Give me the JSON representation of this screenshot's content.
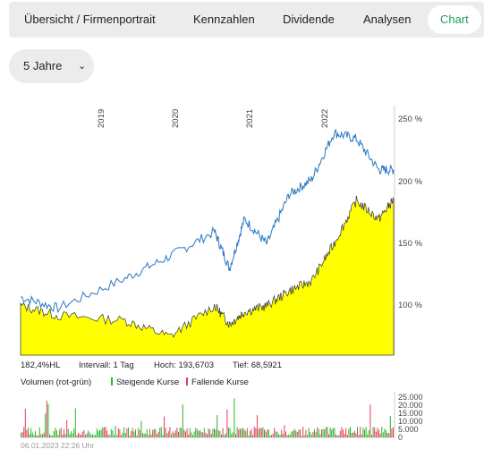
{
  "tabs": [
    {
      "label": "Übersicht / Firmenportrait",
      "active": false
    },
    {
      "label": "Kennzahlen",
      "active": false
    },
    {
      "label": "Dividende",
      "active": false
    },
    {
      "label": "Analysen",
      "active": false
    },
    {
      "label": "Chart",
      "active": true
    }
  ],
  "period_selector": {
    "value": "5 Jahre",
    "icon": "chevron-down-icon"
  },
  "colors": {
    "line": "#2a78c0",
    "area": "#ffff00",
    "accent": "#1fa060",
    "rising": "#2db32d",
    "falling": "#e0405a"
  },
  "chart_data": [
    {
      "type": "line",
      "subtype": "price-line-with-area",
      "x_year_labels": [
        "2019",
        "2020",
        "2021",
        "2022"
      ],
      "y_tick_labels": [
        "250 %",
        "200 %",
        "150 %",
        "100 %"
      ],
      "ylim": [
        60,
        262
      ],
      "series": [
        {
          "style": "line",
          "x": [
            0,
            0.5,
            1.4,
            2,
            2.6,
            2.8,
            3,
            3.3,
            3.6,
            3.9,
            4.2,
            4.5,
            4.8,
            5
          ],
          "values": [
            107,
            98,
            122,
            140,
            160,
            130,
            170,
            150,
            190,
            202,
            240,
            235,
            210,
            210
          ]
        },
        {
          "style": "area",
          "x": [
            0,
            0.5,
            1.4,
            2,
            2.6,
            2.8,
            3,
            3.3,
            3.6,
            3.9,
            4.2,
            4.5,
            4.8,
            5
          ],
          "values": [
            100,
            92,
            88,
            75,
            100,
            85,
            95,
            100,
            112,
            120,
            150,
            185,
            170,
            186
          ]
        }
      ]
    },
    {
      "type": "bar",
      "subtype": "volume",
      "title": "Volumen (rot-grün)",
      "legend": [
        "Steigende Kurse",
        "Fallende Kurse"
      ],
      "y_tick_labels": [
        "25.000",
        "20.000",
        "15.000",
        "10.000",
        "5.000",
        "0"
      ],
      "ylim": [
        0,
        25000
      ]
    }
  ],
  "stats": {
    "scale": "182,4%HL",
    "interval": "Intervall: 1 Tag",
    "high": "Hoch: 193,6703",
    "low": "Tief: 68,5921"
  },
  "volume_labels": {
    "title": "Volumen (rot-grün)",
    "rising": "Steigende Kurse",
    "falling": "Fallende Kurse"
  },
  "timestamp": "06.01.2023 22:26 Uhr"
}
